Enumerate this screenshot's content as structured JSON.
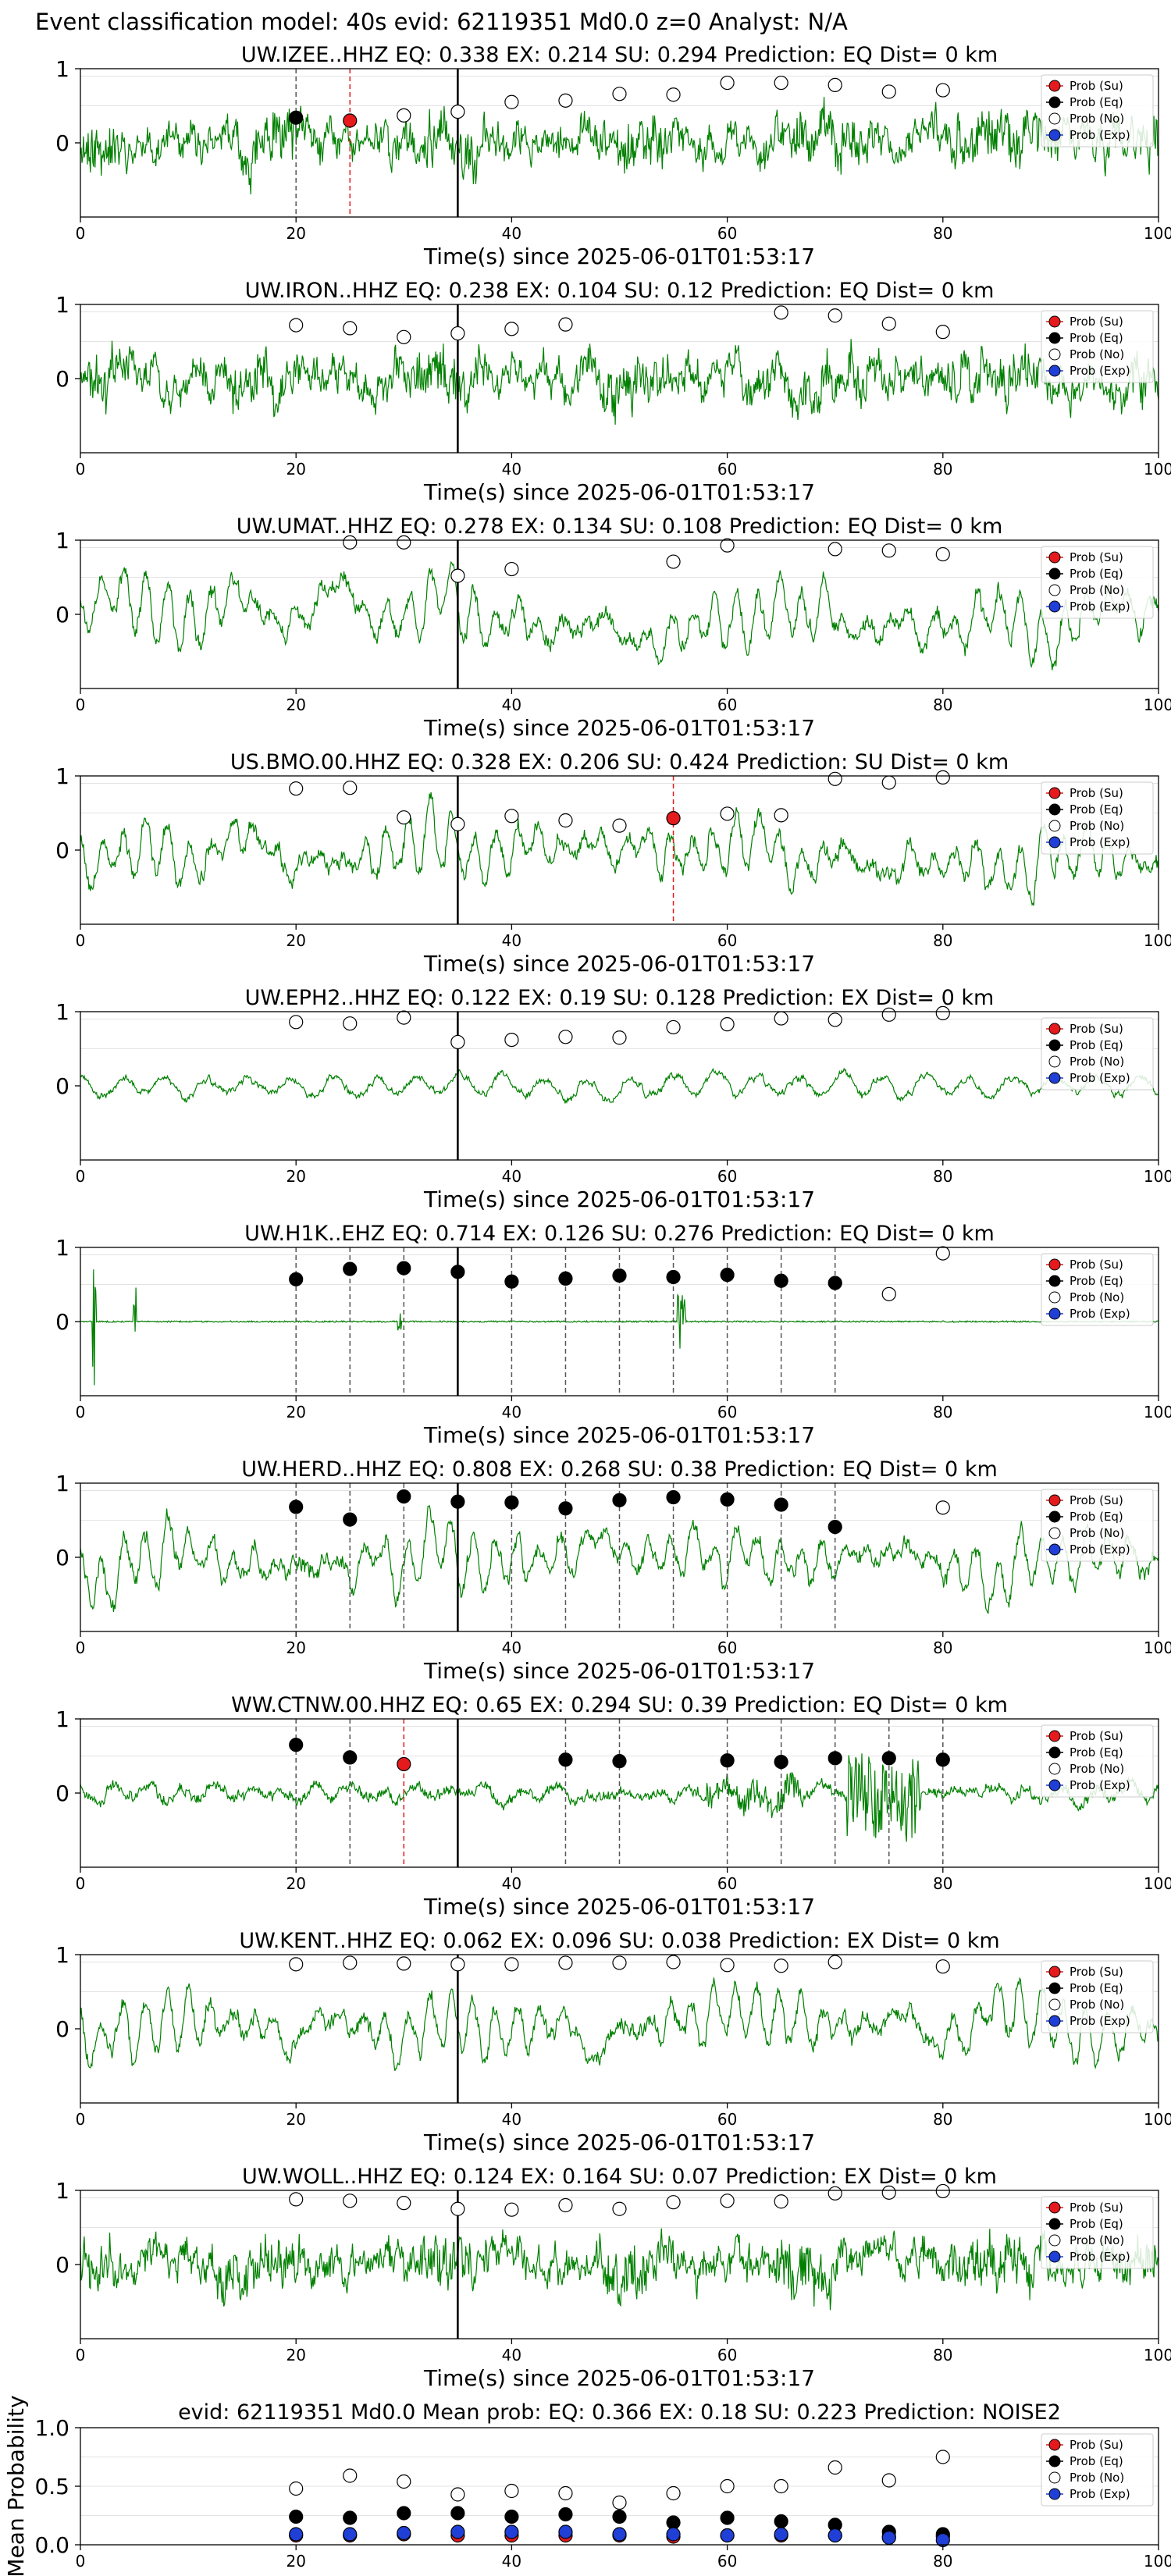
{
  "suptitle": "Event classification model: 40s evid: 62119351 Md0.0 z=0 Analyst: N/A",
  "xlabel": "Time(s) since 2025-06-01T01:53:17",
  "legend": [
    "Prob (Su)",
    "Prob (Eq)",
    "Prob (No)",
    "Prob (Exp)"
  ],
  "colors": {
    "su": "#e41a1c",
    "eq": "#000000",
    "no": "#ffffff",
    "exp": "#1f3fd6",
    "trace": "#008000"
  },
  "chart_data": [
    {
      "type": "line",
      "title": "UW.IZEE..HHZ   EQ: 0.338  EX: 0.214  SU: 0.294   Prediction: EQ    Dist= 0 km",
      "xlim": [
        0,
        100
      ],
      "ylim": [
        -1,
        1
      ],
      "yticks": [
        "1",
        "0"
      ],
      "xticks": [
        "0",
        "20",
        "40",
        "60",
        "80",
        "100"
      ],
      "trace": {
        "seed": 11,
        "style": "noisy"
      },
      "points": [
        {
          "t": 20,
          "p": 0.34,
          "c": "eq"
        },
        {
          "t": 25,
          "p": 0.3,
          "c": "su"
        },
        {
          "t": 30,
          "p": 0.37,
          "c": "no"
        },
        {
          "t": 35,
          "p": 0.42,
          "c": "no"
        },
        {
          "t": 40,
          "p": 0.55,
          "c": "no"
        },
        {
          "t": 45,
          "p": 0.57,
          "c": "no"
        },
        {
          "t": 50,
          "p": 0.66,
          "c": "no"
        },
        {
          "t": 55,
          "p": 0.65,
          "c": "no"
        },
        {
          "t": 60,
          "p": 0.81,
          "c": "no"
        },
        {
          "t": 65,
          "p": 0.81,
          "c": "no"
        },
        {
          "t": 70,
          "p": 0.78,
          "c": "no"
        },
        {
          "t": 75,
          "p": 0.69,
          "c": "no"
        },
        {
          "t": 80,
          "p": 0.71,
          "c": "no"
        }
      ]
    },
    {
      "type": "line",
      "title": "UW.IRON..HHZ   EQ: 0.238  EX: 0.104  SU: 0.12   Prediction: EQ    Dist= 0 km",
      "xlim": [
        0,
        100
      ],
      "ylim": [
        -1,
        1
      ],
      "yticks": [
        "1",
        "0"
      ],
      "xticks": [
        "0",
        "20",
        "40",
        "60",
        "80",
        "100"
      ],
      "trace": {
        "seed": 23,
        "style": "noisy"
      },
      "points": [
        {
          "t": 20,
          "p": 0.72,
          "c": "no"
        },
        {
          "t": 25,
          "p": 0.68,
          "c": "no"
        },
        {
          "t": 30,
          "p": 0.56,
          "c": "no"
        },
        {
          "t": 35,
          "p": 0.61,
          "c": "no"
        },
        {
          "t": 40,
          "p": 0.67,
          "c": "no"
        },
        {
          "t": 45,
          "p": 0.73,
          "c": "no"
        },
        {
          "t": 65,
          "p": 0.89,
          "c": "no"
        },
        {
          "t": 70,
          "p": 0.85,
          "c": "no"
        },
        {
          "t": 75,
          "p": 0.74,
          "c": "no"
        },
        {
          "t": 80,
          "p": 0.63,
          "c": "no"
        }
      ]
    },
    {
      "type": "line",
      "title": "UW.UMAT..HHZ   EQ: 0.278  EX: 0.134  SU: 0.108   Prediction: EQ    Dist= 0 km",
      "xlim": [
        0,
        100
      ],
      "ylim": [
        -1,
        1
      ],
      "yticks": [
        "1",
        "0"
      ],
      "xticks": [
        "0",
        "20",
        "40",
        "60",
        "80",
        "100"
      ],
      "trace": {
        "seed": 37,
        "style": "smooth"
      },
      "points": [
        {
          "t": 25,
          "p": 0.97,
          "c": "no"
        },
        {
          "t": 30,
          "p": 0.97,
          "c": "no"
        },
        {
          "t": 35,
          "p": 0.52,
          "c": "no"
        },
        {
          "t": 40,
          "p": 0.61,
          "c": "no"
        },
        {
          "t": 55,
          "p": 0.71,
          "c": "no"
        },
        {
          "t": 60,
          "p": 0.93,
          "c": "no"
        },
        {
          "t": 70,
          "p": 0.88,
          "c": "no"
        },
        {
          "t": 75,
          "p": 0.86,
          "c": "no"
        },
        {
          "t": 80,
          "p": 0.81,
          "c": "no"
        }
      ]
    },
    {
      "type": "line",
      "title": "US.BMO.00.HHZ   EQ: 0.328  EX: 0.206  SU: 0.424   Prediction: SU    Dist= 0 km",
      "xlim": [
        0,
        100
      ],
      "ylim": [
        -1,
        1
      ],
      "yticks": [
        "1",
        "0"
      ],
      "xticks": [
        "0",
        "20",
        "40",
        "60",
        "80",
        "100"
      ],
      "trace": {
        "seed": 53,
        "style": "smooth"
      },
      "points": [
        {
          "t": 20,
          "p": 0.83,
          "c": "no"
        },
        {
          "t": 25,
          "p": 0.84,
          "c": "no"
        },
        {
          "t": 30,
          "p": 0.44,
          "c": "no"
        },
        {
          "t": 35,
          "p": 0.35,
          "c": "no"
        },
        {
          "t": 40,
          "p": 0.46,
          "c": "no"
        },
        {
          "t": 45,
          "p": 0.4,
          "c": "no"
        },
        {
          "t": 50,
          "p": 0.33,
          "c": "no"
        },
        {
          "t": 55,
          "p": 0.43,
          "c": "su"
        },
        {
          "t": 60,
          "p": 0.49,
          "c": "no"
        },
        {
          "t": 65,
          "p": 0.47,
          "c": "no"
        },
        {
          "t": 70,
          "p": 0.96,
          "c": "no"
        },
        {
          "t": 75,
          "p": 0.91,
          "c": "no"
        },
        {
          "t": 80,
          "p": 0.98,
          "c": "no"
        }
      ]
    },
    {
      "type": "line",
      "title": "UW.EPH2..HHZ   EQ: 0.122  EX: 0.19  SU: 0.128   Prediction: EX    Dist= 0 km",
      "xlim": [
        0,
        100
      ],
      "ylim": [
        -1,
        1
      ],
      "yticks": [
        "1",
        "0"
      ],
      "xticks": [
        "0",
        "20",
        "40",
        "60",
        "80",
        "100"
      ],
      "trace": {
        "seed": 71,
        "style": "quiet"
      },
      "points": [
        {
          "t": 20,
          "p": 0.86,
          "c": "no"
        },
        {
          "t": 25,
          "p": 0.84,
          "c": "no"
        },
        {
          "t": 30,
          "p": 0.92,
          "c": "no"
        },
        {
          "t": 35,
          "p": 0.59,
          "c": "no"
        },
        {
          "t": 40,
          "p": 0.62,
          "c": "no"
        },
        {
          "t": 45,
          "p": 0.66,
          "c": "no"
        },
        {
          "t": 50,
          "p": 0.65,
          "c": "no"
        },
        {
          "t": 55,
          "p": 0.79,
          "c": "no"
        },
        {
          "t": 60,
          "p": 0.83,
          "c": "no"
        },
        {
          "t": 65,
          "p": 0.91,
          "c": "no"
        },
        {
          "t": 70,
          "p": 0.89,
          "c": "no"
        },
        {
          "t": 75,
          "p": 0.96,
          "c": "no"
        },
        {
          "t": 80,
          "p": 0.98,
          "c": "no"
        }
      ]
    },
    {
      "type": "line",
      "title": "UW.H1K..EHZ   EQ: 0.714  EX: 0.126  SU: 0.276   Prediction: EQ    Dist= 0 km",
      "xlim": [
        0,
        100
      ],
      "ylim": [
        -1,
        1
      ],
      "yticks": [
        "1",
        "0"
      ],
      "xticks": [
        "0",
        "20",
        "40",
        "60",
        "80",
        "100"
      ],
      "trace": {
        "seed": 83,
        "style": "spikes"
      },
      "points": [
        {
          "t": 20,
          "p": 0.57,
          "c": "eq"
        },
        {
          "t": 25,
          "p": 0.71,
          "c": "eq"
        },
        {
          "t": 30,
          "p": 0.72,
          "c": "eq"
        },
        {
          "t": 35,
          "p": 0.67,
          "c": "eq"
        },
        {
          "t": 40,
          "p": 0.54,
          "c": "eq"
        },
        {
          "t": 45,
          "p": 0.58,
          "c": "eq"
        },
        {
          "t": 50,
          "p": 0.62,
          "c": "eq"
        },
        {
          "t": 55,
          "p": 0.6,
          "c": "eq"
        },
        {
          "t": 60,
          "p": 0.63,
          "c": "eq"
        },
        {
          "t": 65,
          "p": 0.55,
          "c": "eq"
        },
        {
          "t": 70,
          "p": 0.52,
          "c": "eq"
        },
        {
          "t": 75,
          "p": 0.37,
          "c": "no"
        },
        {
          "t": 80,
          "p": 0.92,
          "c": "no"
        }
      ]
    },
    {
      "type": "line",
      "title": "UW.HERD..HHZ   EQ: 0.808  EX: 0.268  SU: 0.38   Prediction: EQ    Dist= 0 km",
      "xlim": [
        0,
        100
      ],
      "ylim": [
        -1,
        1
      ],
      "yticks": [
        "1",
        "0"
      ],
      "xticks": [
        "0",
        "20",
        "40",
        "60",
        "80",
        "100"
      ],
      "trace": {
        "seed": 97,
        "style": "smooth"
      },
      "points": [
        {
          "t": 20,
          "p": 0.68,
          "c": "eq"
        },
        {
          "t": 25,
          "p": 0.51,
          "c": "eq"
        },
        {
          "t": 30,
          "p": 0.82,
          "c": "eq"
        },
        {
          "t": 35,
          "p": 0.75,
          "c": "eq"
        },
        {
          "t": 40,
          "p": 0.74,
          "c": "eq"
        },
        {
          "t": 45,
          "p": 0.66,
          "c": "eq"
        },
        {
          "t": 50,
          "p": 0.77,
          "c": "eq"
        },
        {
          "t": 55,
          "p": 0.81,
          "c": "eq"
        },
        {
          "t": 60,
          "p": 0.78,
          "c": "eq"
        },
        {
          "t": 65,
          "p": 0.71,
          "c": "eq"
        },
        {
          "t": 70,
          "p": 0.41,
          "c": "eq"
        },
        {
          "t": 80,
          "p": 0.67,
          "c": "no"
        }
      ]
    },
    {
      "type": "line",
      "title": "WW.CTNW.00.HHZ   EQ: 0.65  EX: 0.294  SU: 0.39   Prediction: EQ    Dist= 0 km",
      "xlim": [
        0,
        100
      ],
      "ylim": [
        -1,
        1
      ],
      "yticks": [
        "1",
        "0"
      ],
      "xticks": [
        "0",
        "20",
        "40",
        "60",
        "80",
        "100"
      ],
      "trace": {
        "seed": 101,
        "style": "burst"
      },
      "points": [
        {
          "t": 20,
          "p": 0.65,
          "c": "eq"
        },
        {
          "t": 25,
          "p": 0.48,
          "c": "eq"
        },
        {
          "t": 30,
          "p": 0.39,
          "c": "su"
        },
        {
          "t": 45,
          "p": 0.45,
          "c": "eq"
        },
        {
          "t": 50,
          "p": 0.43,
          "c": "eq"
        },
        {
          "t": 60,
          "p": 0.44,
          "c": "eq"
        },
        {
          "t": 65,
          "p": 0.42,
          "c": "eq"
        },
        {
          "t": 70,
          "p": 0.47,
          "c": "eq"
        },
        {
          "t": 75,
          "p": 0.47,
          "c": "eq"
        },
        {
          "t": 80,
          "p": 0.45,
          "c": "eq"
        }
      ]
    },
    {
      "type": "line",
      "title": "UW.KENT..HHZ   EQ: 0.062  EX: 0.096  SU: 0.038   Prediction: EX    Dist= 0 km",
      "xlim": [
        0,
        100
      ],
      "ylim": [
        -1,
        1
      ],
      "yticks": [
        "1",
        "0"
      ],
      "xticks": [
        "0",
        "20",
        "40",
        "60",
        "80",
        "100"
      ],
      "trace": {
        "seed": 113,
        "style": "smooth"
      },
      "points": [
        {
          "t": 20,
          "p": 0.87,
          "c": "no"
        },
        {
          "t": 25,
          "p": 0.89,
          "c": "no"
        },
        {
          "t": 30,
          "p": 0.88,
          "c": "no"
        },
        {
          "t": 35,
          "p": 0.87,
          "c": "no"
        },
        {
          "t": 40,
          "p": 0.87,
          "c": "no"
        },
        {
          "t": 45,
          "p": 0.89,
          "c": "no"
        },
        {
          "t": 50,
          "p": 0.89,
          "c": "no"
        },
        {
          "t": 55,
          "p": 0.9,
          "c": "no"
        },
        {
          "t": 60,
          "p": 0.86,
          "c": "no"
        },
        {
          "t": 65,
          "p": 0.85,
          "c": "no"
        },
        {
          "t": 70,
          "p": 0.9,
          "c": "no"
        },
        {
          "t": 80,
          "p": 0.84,
          "c": "no"
        }
      ]
    },
    {
      "type": "line",
      "title": "UW.WOLL..HHZ   EQ: 0.124  EX: 0.164  SU: 0.07   Prediction: EX    Dist= 0 km",
      "xlim": [
        0,
        100
      ],
      "ylim": [
        -1,
        1
      ],
      "yticks": [
        "1",
        "0"
      ],
      "xticks": [
        "0",
        "20",
        "40",
        "60",
        "80",
        "100"
      ],
      "trace": {
        "seed": 127,
        "style": "noisy"
      },
      "points": [
        {
          "t": 20,
          "p": 0.88,
          "c": "no"
        },
        {
          "t": 25,
          "p": 0.86,
          "c": "no"
        },
        {
          "t": 30,
          "p": 0.83,
          "c": "no"
        },
        {
          "t": 35,
          "p": 0.75,
          "c": "no"
        },
        {
          "t": 40,
          "p": 0.74,
          "c": "no"
        },
        {
          "t": 45,
          "p": 0.8,
          "c": "no"
        },
        {
          "t": 50,
          "p": 0.75,
          "c": "no"
        },
        {
          "t": 55,
          "p": 0.84,
          "c": "no"
        },
        {
          "t": 60,
          "p": 0.86,
          "c": "no"
        },
        {
          "t": 65,
          "p": 0.85,
          "c": "no"
        },
        {
          "t": 70,
          "p": 0.96,
          "c": "no"
        },
        {
          "t": 75,
          "p": 0.97,
          "c": "no"
        },
        {
          "t": 80,
          "p": 0.99,
          "c": "no"
        }
      ]
    },
    {
      "type": "scatter",
      "title": "evid: 62119351  Md0.0   Mean prob:   EQ: 0.366  EX: 0.18  SU: 0.223   Prediction: NOISE2",
      "ylabel": "Mean Probability",
      "xlim": [
        0,
        100
      ],
      "ylim": [
        0,
        1
      ],
      "yticks": [
        "0.0",
        "0.5",
        "1.0"
      ],
      "xticks": [
        "0",
        "20",
        "40",
        "60",
        "80",
        "100"
      ],
      "x": [
        20,
        25,
        30,
        35,
        40,
        45,
        50,
        55,
        60,
        65,
        70,
        75,
        80
      ],
      "series": [
        {
          "name": "Prob (Su)",
          "key": "su",
          "values": [
            0.08,
            0.08,
            0.09,
            0.08,
            0.08,
            0.08,
            0.08,
            0.07,
            0.08,
            0.08,
            0.08,
            0.07,
            0.07
          ]
        },
        {
          "name": "Prob (Eq)",
          "key": "eq",
          "values": [
            0.24,
            0.23,
            0.27,
            0.27,
            0.24,
            0.26,
            0.24,
            0.19,
            0.23,
            0.2,
            0.17,
            0.11,
            0.09
          ]
        },
        {
          "name": "Prob (No)",
          "key": "no",
          "values": [
            0.48,
            0.59,
            0.54,
            0.43,
            0.46,
            0.44,
            0.36,
            0.44,
            0.5,
            0.5,
            0.66,
            0.55,
            0.75
          ]
        },
        {
          "name": "Prob (Exp)",
          "key": "exp",
          "values": [
            0.09,
            0.09,
            0.1,
            0.11,
            0.11,
            0.11,
            0.09,
            0.09,
            0.08,
            0.09,
            0.08,
            0.06,
            0.04
          ]
        }
      ]
    }
  ]
}
